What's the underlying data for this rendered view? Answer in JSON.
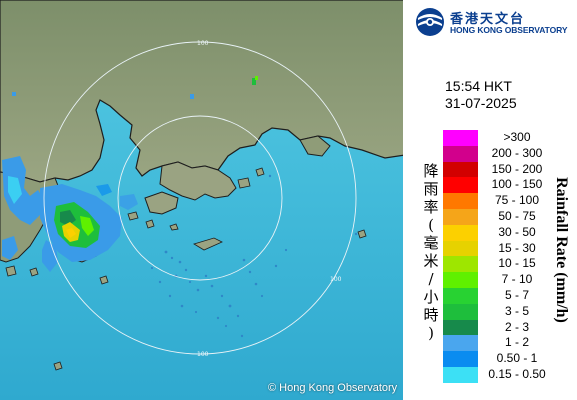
{
  "header": {
    "logo_text_cn": "香港天文台",
    "logo_text_en": "HONG KONG OBSERVATORY",
    "brand_color": "#0b3f8f"
  },
  "timestamp": {
    "time": "15:54 HKT",
    "date": "31-07-2025"
  },
  "legend": {
    "title_cn_chars": [
      "降",
      "雨",
      "率",
      "(",
      "毫",
      "米",
      "/",
      "小",
      "時",
      ")"
    ],
    "title_en": "Rainfall Rate (mm/h)",
    "items": [
      {
        "label": ">300",
        "color": "#ff00ff"
      },
      {
        "label": "200 - 300",
        "color": "#d2008c"
      },
      {
        "label": "150 - 200",
        "color": "#d20000"
      },
      {
        "label": "100 - 150",
        "color": "#ff0000"
      },
      {
        "label": "75 - 100",
        "color": "#ff7800"
      },
      {
        "label": "50 - 75",
        "color": "#f5a519"
      },
      {
        "label": "30 - 50",
        "color": "#fcd000"
      },
      {
        "label": "15 - 30",
        "color": "#e6d200"
      },
      {
        "label": "10 - 15",
        "color": "#9ee600"
      },
      {
        "label": "7 - 10",
        "color": "#5ff000"
      },
      {
        "label": "5 - 7",
        "color": "#28d232"
      },
      {
        "label": "3 - 5",
        "color": "#1ebe3c"
      },
      {
        "label": "2 - 3",
        "color": "#178a4b"
      },
      {
        "label": "1 - 2",
        "color": "#4aa6ee"
      },
      {
        "label": "0.50 - 1",
        "color": "#0a8cf0"
      },
      {
        "label": "0.15 - 0.50",
        "color": "#3ce0f5"
      }
    ]
  },
  "map": {
    "range_ring_labels": [
      "100",
      "100",
      "100"
    ],
    "copyright": "© Hong Kong Observatory",
    "colors": {
      "sea": "#40c3e0",
      "land": "#8a9a74",
      "coastline": "#1a1a1a",
      "range_rings": "#e8f2f6"
    }
  }
}
